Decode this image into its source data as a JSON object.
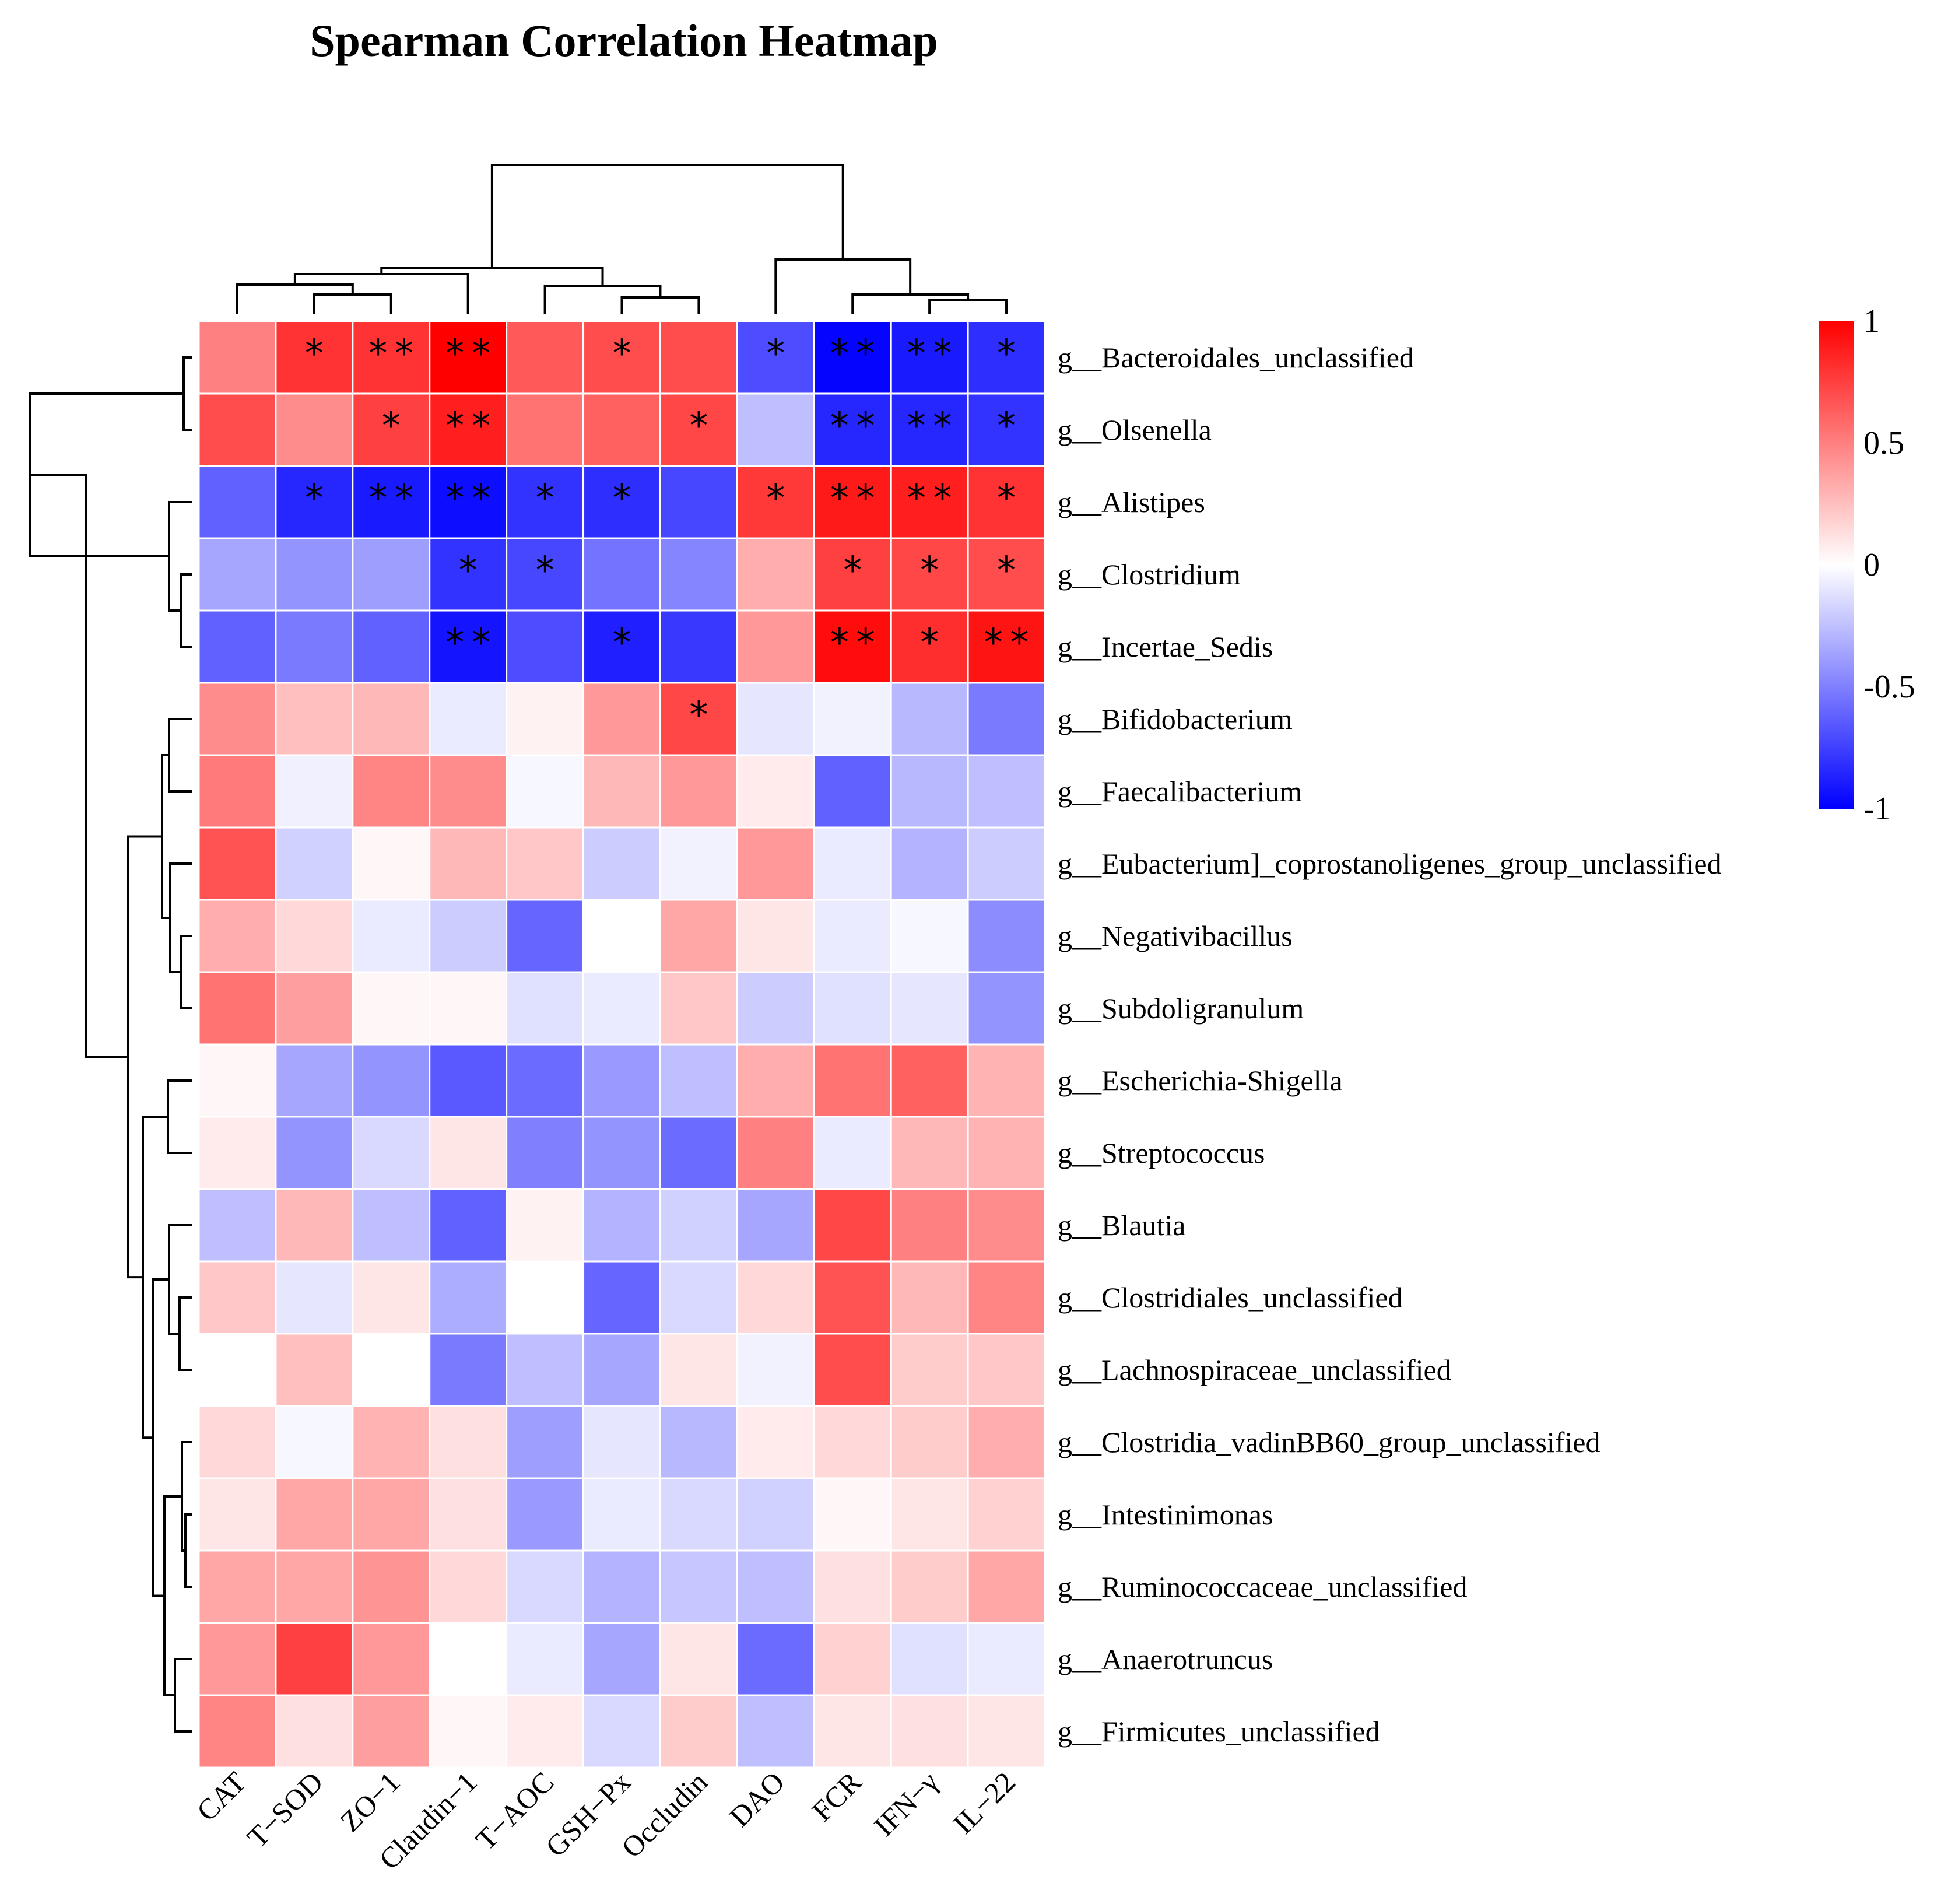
{
  "chart_data": {
    "type": "heatmap",
    "title": "Spearman Correlation Heatmap",
    "columns": [
      "CAT",
      "T−SOD",
      "ZO−1",
      "Claudin−1",
      "T−AOC",
      "GSH−Px",
      "Occludin",
      "DAO",
      "FCR",
      "IFN−γ",
      "IL−22"
    ],
    "rows": [
      "g__Bacteroidales_unclassified",
      "g__Olsenella",
      "g__Alistipes",
      "g__Clostridium",
      "g__Incertae_Sedis",
      "g__Bifidobacterium",
      "g__Faecalibacterium",
      "g__Eubacterium]_coprostanoligenes_group_unclassified",
      "g__Negativibacillus",
      "g__Subdoligranulum",
      "g__Escherichia-Shigella",
      "g__Streptococcus",
      "g__Blautia",
      "g__Clostridiales_unclassified",
      "g__Lachnospiraceae_unclassified",
      "g__Clostridia_vadinBB60_group_unclassified",
      "g__Intestinimonas",
      "g__Ruminococcaceae_unclassified",
      "g__Anaerotruncus",
      "g__Firmicutes_unclassified"
    ],
    "values": [
      [
        0.5,
        0.8,
        0.8,
        1.0,
        0.65,
        0.7,
        0.7,
        -0.7,
        -0.98,
        -0.9,
        -0.82
      ],
      [
        0.7,
        0.45,
        0.75,
        0.88,
        0.55,
        0.62,
        0.72,
        -0.25,
        -0.85,
        -0.85,
        -0.8
      ],
      [
        -0.62,
        -0.85,
        -0.9,
        -0.95,
        -0.8,
        -0.82,
        -0.72,
        0.78,
        0.9,
        0.88,
        0.8
      ],
      [
        -0.35,
        -0.42,
        -0.38,
        -0.8,
        -0.72,
        -0.55,
        -0.48,
        0.32,
        0.75,
        0.72,
        0.7
      ],
      [
        -0.62,
        -0.52,
        -0.62,
        -0.92,
        -0.7,
        -0.88,
        -0.78,
        0.4,
        0.95,
        0.82,
        0.92
      ],
      [
        0.45,
        0.25,
        0.28,
        -0.08,
        0.05,
        0.4,
        0.72,
        -0.1,
        -0.05,
        -0.28,
        -0.52
      ],
      [
        0.52,
        -0.06,
        0.48,
        0.45,
        -0.03,
        0.28,
        0.4,
        0.08,
        -0.62,
        -0.28,
        -0.25
      ],
      [
        0.68,
        -0.18,
        0.03,
        0.28,
        0.22,
        -0.2,
        -0.05,
        0.4,
        -0.08,
        -0.3,
        -0.2
      ],
      [
        0.32,
        0.15,
        -0.08,
        -0.2,
        -0.6,
        0.0,
        0.35,
        0.1,
        -0.08,
        -0.03,
        -0.45
      ],
      [
        0.55,
        0.38,
        0.03,
        0.03,
        -0.12,
        -0.08,
        0.22,
        -0.2,
        -0.12,
        -0.1,
        -0.42
      ],
      [
        0.03,
        -0.35,
        -0.42,
        -0.65,
        -0.58,
        -0.4,
        -0.25,
        0.32,
        0.55,
        0.62,
        0.3
      ],
      [
        0.08,
        -0.42,
        -0.15,
        0.1,
        -0.5,
        -0.42,
        -0.58,
        0.5,
        -0.08,
        0.28,
        0.3
      ],
      [
        -0.25,
        0.28,
        -0.25,
        -0.62,
        0.05,
        -0.3,
        -0.18,
        -0.35,
        0.72,
        0.5,
        0.45
      ],
      [
        0.22,
        -0.1,
        0.1,
        -0.32,
        0.0,
        -0.6,
        -0.15,
        0.15,
        0.68,
        0.28,
        0.48
      ],
      [
        0.0,
        0.25,
        0.0,
        -0.52,
        -0.25,
        -0.35,
        0.1,
        -0.05,
        0.7,
        0.2,
        0.22
      ],
      [
        0.15,
        -0.03,
        0.3,
        0.12,
        -0.38,
        -0.1,
        -0.28,
        0.08,
        0.15,
        0.2,
        0.32
      ],
      [
        0.1,
        0.35,
        0.35,
        0.12,
        -0.4,
        -0.08,
        -0.15,
        -0.18,
        0.03,
        0.1,
        0.18
      ],
      [
        0.35,
        0.35,
        0.42,
        0.15,
        -0.15,
        -0.3,
        -0.22,
        -0.25,
        0.12,
        0.2,
        0.35
      ],
      [
        0.4,
        0.75,
        0.4,
        0.0,
        -0.08,
        -0.35,
        0.1,
        -0.58,
        0.18,
        -0.12,
        -0.08
      ],
      [
        0.48,
        0.12,
        0.38,
        0.03,
        0.08,
        -0.15,
        0.2,
        -0.25,
        0.1,
        0.12,
        0.1
      ]
    ],
    "significance": [
      [
        "",
        "*",
        "**",
        "**",
        "",
        "*",
        "",
        "*",
        "**",
        "**",
        "*"
      ],
      [
        "",
        "",
        "*",
        "**",
        "",
        "",
        "*",
        "",
        "**",
        "**",
        "*"
      ],
      [
        "",
        "*",
        "**",
        "**",
        "*",
        "*",
        "",
        "*",
        "**",
        "**",
        "*"
      ],
      [
        "",
        "",
        "",
        "*",
        "*",
        "",
        "",
        "",
        "*",
        "*",
        "*"
      ],
      [
        "",
        "",
        "",
        "**",
        "",
        "*",
        "",
        "",
        "**",
        "*",
        "**"
      ],
      [
        "",
        "",
        "",
        "",
        "",
        "",
        "*",
        "",
        "",
        "",
        ""
      ],
      [
        "",
        "",
        "",
        "",
        "",
        "",
        "",
        "",
        "",
        "",
        ""
      ],
      [
        "",
        "",
        "",
        "",
        "",
        "",
        "",
        "",
        "",
        "",
        ""
      ],
      [
        "",
        "",
        "",
        "",
        "",
        "",
        "",
        "",
        "",
        "",
        ""
      ],
      [
        "",
        "",
        "",
        "",
        "",
        "",
        "",
        "",
        "",
        "",
        ""
      ],
      [
        "",
        "",
        "",
        "",
        "",
        "",
        "",
        "",
        "",
        "",
        ""
      ],
      [
        "",
        "",
        "",
        "",
        "",
        "",
        "",
        "",
        "",
        "",
        ""
      ],
      [
        "",
        "",
        "",
        "",
        "",
        "",
        "",
        "",
        "",
        "",
        ""
      ],
      [
        "",
        "",
        "",
        "",
        "",
        "",
        "",
        "",
        "",
        "",
        ""
      ],
      [
        "",
        "",
        "",
        "",
        "",
        "",
        "",
        "",
        "",
        "",
        ""
      ],
      [
        "",
        "",
        "",
        "",
        "",
        "",
        "",
        "",
        "",
        "",
        ""
      ],
      [
        "",
        "",
        "",
        "",
        "",
        "",
        "",
        "",
        "",
        "",
        ""
      ],
      [
        "",
        "",
        "",
        "",
        "",
        "",
        "",
        "",
        "",
        "",
        ""
      ],
      [
        "",
        "",
        "",
        "",
        "",
        "",
        "",
        "",
        "",
        "",
        ""
      ],
      [
        "",
        "",
        "",
        "",
        "",
        "",
        "",
        "",
        "",
        "",
        ""
      ]
    ],
    "color_scale": {
      "min": -1,
      "max": 1,
      "low_color": "#0000ff",
      "mid_color": "#ffffff",
      "high_color": "#ff0000",
      "ticks": [
        1,
        0.5,
        0,
        -0.5,
        -1
      ],
      "tick_labels": [
        "1",
        "0.5",
        "0",
        "-0.5",
        "-1"
      ]
    },
    "legend_placement": "right",
    "row_dendrogram": true,
    "column_dendrogram": true
  }
}
